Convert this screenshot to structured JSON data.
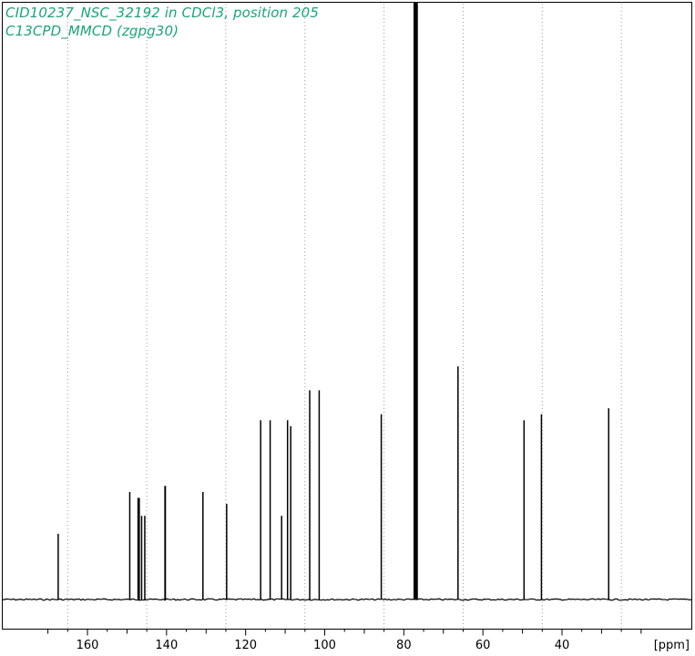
{
  "chart_data": {
    "type": "line",
    "title": "CID10237_NSC_32192 in CDCl3, position 205",
    "subtitle": "C13CPD_MMCD (zgpg30)",
    "xlabel": "[ppm]",
    "ylabel": "",
    "x_direction": "reversed",
    "xlim": [
      172,
      17
    ],
    "x_ticks": [
      160,
      140,
      120,
      100,
      80,
      60,
      40
    ],
    "grid": "dotted vertical",
    "series": [
      {
        "peaks_ppm": [
          167.4,
          149.3,
          147.2,
          146.9,
          146.3,
          145.5,
          140.4,
          140.3,
          130.8,
          124.8,
          116.2,
          113.8,
          110.9,
          109.4,
          108.6,
          103.8,
          101.4,
          85.7,
          77.3,
          77.0,
          76.7,
          66.3,
          49.6,
          45.2,
          28.2
        ],
        "intensities": [
          0.11,
          0.18,
          0.17,
          0.17,
          0.14,
          0.14,
          0.19,
          0.19,
          0.18,
          0.16,
          0.3,
          0.3,
          0.14,
          0.3,
          0.29,
          0.35,
          0.35,
          0.31,
          1.0,
          1.0,
          1.0,
          0.39,
          0.3,
          0.31,
          0.32
        ]
      }
    ]
  }
}
